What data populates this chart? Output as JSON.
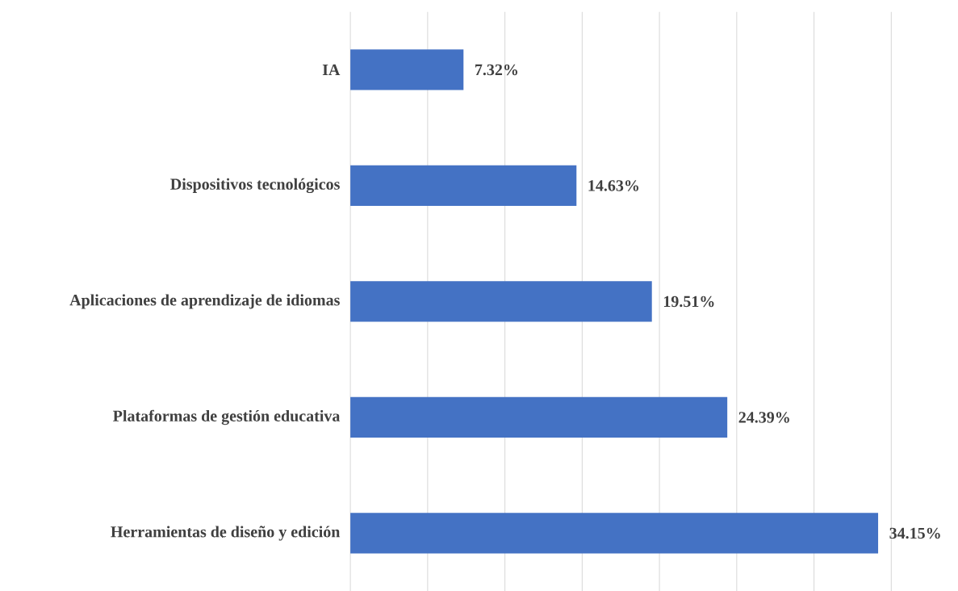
{
  "chart_data": {
    "type": "bar",
    "orientation": "horizontal",
    "categories": [
      "IA",
      "Dispositivos tecnológicos",
      "Aplicaciones de aprendizaje de idiomas",
      "Plataformas de gestión educativa",
      "Herramientas de diseño y edición"
    ],
    "values": [
      7.32,
      14.63,
      19.51,
      24.39,
      34.15
    ],
    "value_labels": [
      "7.32%",
      "14.63%",
      "19.51%",
      "24.39%",
      "34.15%"
    ],
    "color": "#4472c4",
    "xlim": [
      0,
      35
    ],
    "xticks": [
      {
        "value": 0,
        "label": null
      },
      {
        "value": 5,
        "label": null
      },
      {
        "value": 10,
        "label": null
      },
      {
        "value": 15,
        "label": null
      },
      {
        "value": 20,
        "label": null
      },
      {
        "value": 25,
        "label": null
      },
      {
        "value": 30,
        "label": null
      },
      {
        "value": 35,
        "label": null
      }
    ],
    "grid": "x",
    "tick_labels": "y"
  }
}
